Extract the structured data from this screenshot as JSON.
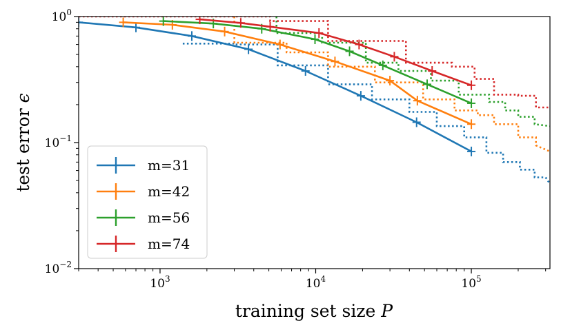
{
  "chart_data": {
    "type": "line",
    "xscale": "log",
    "yscale": "log",
    "xlim": [
      300,
      320000
    ],
    "ylim": [
      0.01,
      1.0
    ],
    "xlabel": "training set size P",
    "ylabel": "test error ϵ",
    "xticks": [
      {
        "value": 1000,
        "base": "10",
        "exp": "3"
      },
      {
        "value": 10000,
        "base": "10",
        "exp": "4"
      },
      {
        "value": 100000,
        "base": "10",
        "exp": "5"
      }
    ],
    "yticks": [
      {
        "value": 1.0,
        "base": "10",
        "exp": "0"
      },
      {
        "value": 0.1,
        "base": "10",
        "exp": "−1"
      },
      {
        "value": 0.01,
        "base": "10",
        "exp": "−2"
      }
    ],
    "legend_position": "lower-left",
    "series": [
      {
        "name": "m=31",
        "color": "#1f77b4",
        "solid": {
          "x": [
            300,
            700,
            1600,
            3700,
            8600,
            19500,
            44500,
            100000
          ],
          "y": [
            0.9,
            0.82,
            0.7,
            0.55,
            0.37,
            0.235,
            0.145,
            0.085
          ]
        },
        "dotted_steps": [
          [
            1400,
            0.61
          ],
          [
            3000,
            0.61
          ],
          [
            3000,
            0.6
          ],
          [
            5700,
            0.6
          ],
          [
            5700,
            0.41
          ],
          [
            12000,
            0.41
          ],
          [
            12000,
            0.29
          ],
          [
            23000,
            0.29
          ],
          [
            23000,
            0.22
          ],
          [
            40000,
            0.22
          ],
          [
            40000,
            0.175
          ],
          [
            60000,
            0.175
          ],
          [
            60000,
            0.135
          ],
          [
            90000,
            0.135
          ],
          [
            90000,
            0.11
          ],
          [
            125000,
            0.11
          ],
          [
            125000,
            0.083
          ],
          [
            160000,
            0.083
          ],
          [
            160000,
            0.07
          ],
          [
            205000,
            0.07
          ],
          [
            205000,
            0.061
          ],
          [
            255000,
            0.061
          ],
          [
            255000,
            0.053
          ],
          [
            300000,
            0.053
          ],
          [
            320000,
            0.047
          ]
        ]
      },
      {
        "name": "m=42",
        "color": "#ff7f0e",
        "solid": {
          "x": [
            580,
            1200,
            2600,
            5900,
            13300,
            30000,
            45000,
            100000
          ],
          "y": [
            0.9,
            0.86,
            0.76,
            0.6,
            0.44,
            0.31,
            0.215,
            0.14
          ]
        },
        "dotted_steps": [
          [
            3000,
            1.0
          ],
          [
            3000,
            0.62
          ],
          [
            6500,
            0.62
          ],
          [
            6500,
            0.52
          ],
          [
            12000,
            0.52
          ],
          [
            12000,
            0.4
          ],
          [
            24000,
            0.4
          ],
          [
            24000,
            0.3
          ],
          [
            49000,
            0.3
          ],
          [
            49000,
            0.22
          ],
          [
            78000,
            0.22
          ],
          [
            78000,
            0.18
          ],
          [
            110000,
            0.18
          ],
          [
            110000,
            0.165
          ],
          [
            140000,
            0.165
          ],
          [
            140000,
            0.14
          ],
          [
            200000,
            0.14
          ],
          [
            200000,
            0.11
          ],
          [
            260000,
            0.11
          ],
          [
            260000,
            0.095
          ],
          [
            320000,
            0.085
          ]
        ]
      },
      {
        "name": "m=56",
        "color": "#2ca02c",
        "solid": {
          "x": [
            1050,
            2200,
            4500,
            9900,
            16500,
            27000,
            52000,
            100000
          ],
          "y": [
            0.92,
            0.88,
            0.8,
            0.66,
            0.53,
            0.41,
            0.29,
            0.205
          ]
        },
        "dotted_steps": [
          [
            5600,
            1.0
          ],
          [
            5600,
            0.74
          ],
          [
            11000,
            0.74
          ],
          [
            11000,
            0.62
          ],
          [
            21000,
            0.62
          ],
          [
            21000,
            0.43
          ],
          [
            34000,
            0.43
          ],
          [
            34000,
            0.37
          ],
          [
            55000,
            0.37
          ],
          [
            55000,
            0.31
          ],
          [
            83000,
            0.31
          ],
          [
            83000,
            0.24
          ],
          [
            130000,
            0.24
          ],
          [
            130000,
            0.21
          ],
          [
            165000,
            0.21
          ],
          [
            165000,
            0.18
          ],
          [
            200000,
            0.18
          ],
          [
            200000,
            0.16
          ],
          [
            255000,
            0.16
          ],
          [
            255000,
            0.14
          ],
          [
            320000,
            0.135
          ]
        ]
      },
      {
        "name": "m=74",
        "color": "#d62728",
        "solid": {
          "x": [
            1800,
            3300,
            5100,
            10500,
            19000,
            32000,
            56000,
            100000
          ],
          "y": [
            0.95,
            0.89,
            0.83,
            0.74,
            0.6,
            0.48,
            0.37,
            0.285
          ]
        },
        "dotted_steps": [
          [
            300,
            1.0
          ],
          [
            5100,
            1.0
          ],
          [
            5100,
            0.92
          ],
          [
            12000,
            0.92
          ],
          [
            12000,
            0.64
          ],
          [
            38000,
            0.64
          ],
          [
            38000,
            0.43
          ],
          [
            75000,
            0.43
          ],
          [
            75000,
            0.4
          ],
          [
            105000,
            0.4
          ],
          [
            105000,
            0.32
          ],
          [
            140000,
            0.32
          ],
          [
            140000,
            0.24
          ],
          [
            200000,
            0.24
          ],
          [
            200000,
            0.235
          ],
          [
            260000,
            0.235
          ],
          [
            260000,
            0.19
          ],
          [
            320000,
            0.19
          ]
        ]
      }
    ]
  }
}
